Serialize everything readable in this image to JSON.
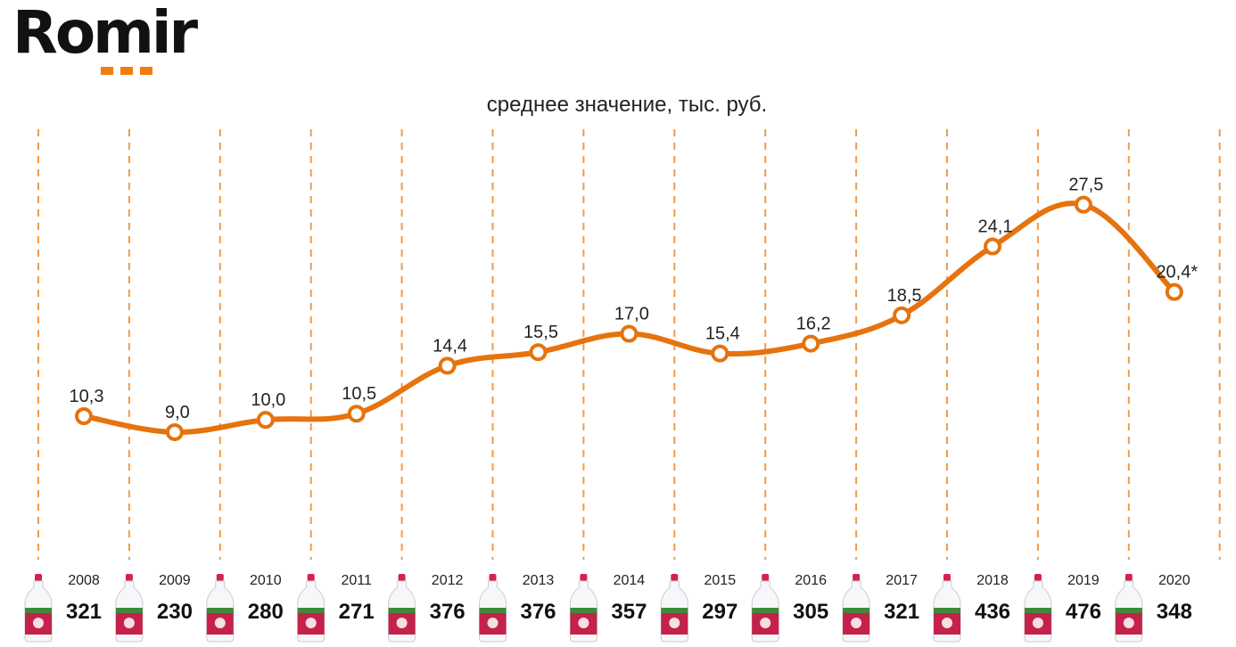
{
  "logo": {
    "text": "Romir",
    "accent_color": "#f07d10"
  },
  "subtitle": "среднее значение, тыс. руб.",
  "colors": {
    "line": "#e5730e",
    "marker_fill": "#ffffff",
    "divider": "#f29a4a"
  },
  "product_icon": "milk-bottle-icon",
  "chart_data": {
    "type": "line",
    "title": "среднее значение, тыс. руб.",
    "categories": [
      "2008",
      "2009",
      "2010",
      "2011",
      "2012",
      "2013",
      "2014",
      "2015",
      "2016",
      "2017",
      "2018",
      "2019",
      "2020"
    ],
    "series": [
      {
        "values": [
          10.3,
          9.0,
          10.0,
          10.5,
          14.4,
          15.5,
          17.0,
          15.4,
          16.2,
          18.5,
          24.1,
          27.5,
          20.4
        ]
      }
    ],
    "value_labels": [
      "10,3",
      "9,0",
      "10,0",
      "10,5",
      "14,4",
      "15,5",
      "17,0",
      "15,4",
      "16,2",
      "18,5",
      "24,1",
      "27,5",
      "20,4*"
    ],
    "bottle_counts": [
      "321",
      "230",
      "280",
      "271",
      "376",
      "376",
      "357",
      "297",
      "305",
      "321",
      "436",
      "476",
      "348"
    ],
    "ylim": [
      0,
      30
    ],
    "grid": "vertical dashed dividers",
    "legend": "none"
  }
}
